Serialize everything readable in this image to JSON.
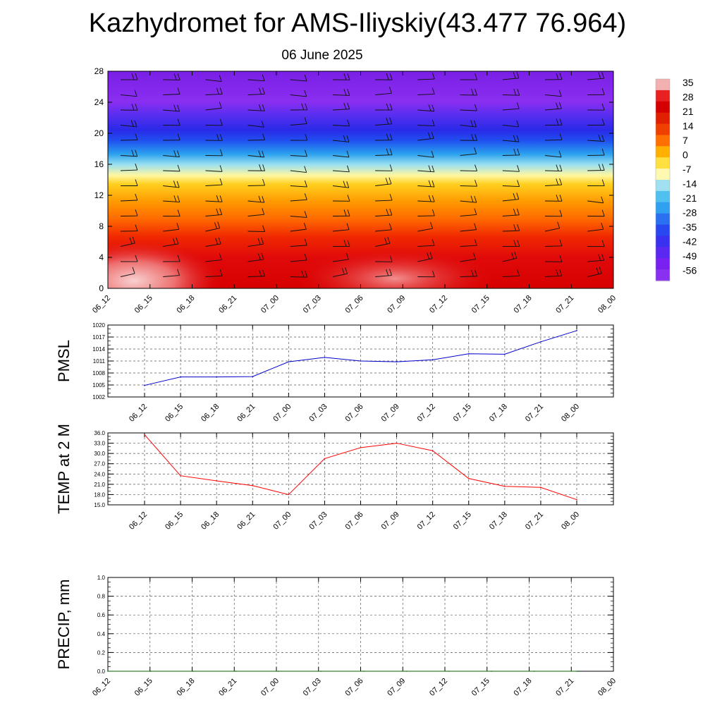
{
  "title": "Kazhydromet for AMS-Iliyskiy(43.477 76.964)",
  "subtitle": "06 June 2025",
  "chart_data": [
    {
      "type": "heatmap",
      "ylim": [
        0,
        28
      ],
      "yticks": [
        0,
        4,
        8,
        12,
        16,
        20,
        24,
        28
      ],
      "x_tick_labels": [
        "06_12",
        "06_15",
        "06_18",
        "06_21",
        "07_00",
        "07_03",
        "07_06",
        "07_09",
        "07_12",
        "07_15",
        "07_18",
        "07_21",
        "08_00"
      ],
      "colorbar": {
        "labels": [
          "35",
          "28",
          "21",
          "14",
          "7",
          "0",
          "-7",
          "-14",
          "-21",
          "-28",
          "-35",
          "-42",
          "-49",
          "-56"
        ],
        "values": [
          35,
          28,
          21,
          14,
          7,
          0,
          -7,
          -14,
          -21,
          -28,
          -35,
          -42,
          -49,
          -56
        ]
      },
      "wind_barbs": true
    },
    {
      "type": "line",
      "ylabel": "PMSL",
      "ylim": [
        1002,
        1020
      ],
      "y_tick_labels": [
        "1002",
        "1005",
        "1008",
        "1011",
        "1014",
        "1017",
        "1020"
      ],
      "x_tick_labels": [
        "06_12",
        "06_15",
        "06_18",
        "06_21",
        "07_00",
        "07_03",
        "07_06",
        "07_09",
        "07_12",
        "07_15",
        "07_18",
        "07_21",
        "08_00"
      ],
      "values": [
        1004.9,
        1007.0,
        1007.0,
        1007.1,
        1010.8,
        1011.9,
        1011.0,
        1010.8,
        1011.3,
        1012.8,
        1012.7,
        1015.8,
        1018.6
      ],
      "color": "#0000cc",
      "grid": true
    },
    {
      "type": "line",
      "ylabel": "TEMP at 2 M",
      "ylim": [
        15.0,
        36.0
      ],
      "y_tick_labels": [
        "15.0",
        "18.0",
        "21.0",
        "24.0",
        "27.0",
        "30.0",
        "33.0",
        "36.0"
      ],
      "x_tick_labels": [
        "06_12",
        "06_15",
        "06_18",
        "06_21",
        "07_00",
        "07_03",
        "07_06",
        "07_09",
        "07_12",
        "07_15",
        "07_18",
        "07_21",
        "08_00"
      ],
      "values": [
        35.5,
        23.5,
        22.0,
        20.6,
        18.0,
        28.5,
        31.7,
        33.0,
        30.8,
        22.7,
        20.4,
        20.1,
        16.5
      ],
      "color": "#ff0000",
      "grid": true
    },
    {
      "type": "line",
      "ylabel": "PRECIP, mm",
      "ylim": [
        0.0,
        1.0
      ],
      "y_tick_labels": [
        "0.0",
        "0.2",
        "0.4",
        "0.6",
        "0.8",
        "1.0"
      ],
      "x_tick_labels": [
        "06_12",
        "06_15",
        "06_18",
        "06_21",
        "07_00",
        "07_03",
        "07_06",
        "07_09",
        "07_12",
        "07_15",
        "07_18",
        "07_21",
        "08_00"
      ],
      "values": [
        0,
        0,
        0,
        0,
        0,
        0,
        0,
        0,
        0,
        0,
        0,
        0
      ],
      "color": "#006400",
      "grid": true
    }
  ]
}
